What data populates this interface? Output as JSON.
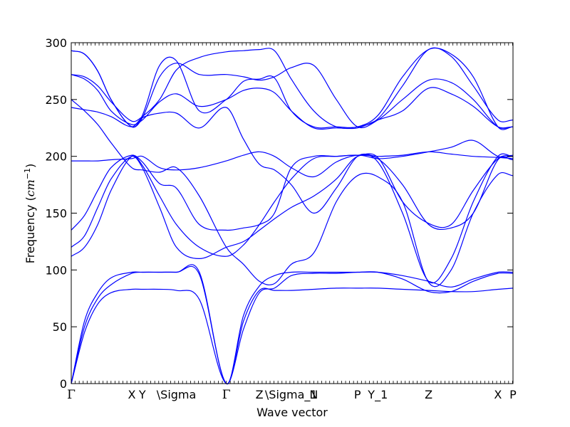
{
  "chart_data": {
    "type": "line",
    "title": "",
    "xlabel": "Wave vector",
    "ylabel": "Frequency (cm⁻¹)",
    "ylabel_prefix": "Frequency (",
    "ylabel_unit": "cm",
    "ylabel_exp": "−1",
    "ylabel_suffix": ")",
    "ylim": [
      0,
      300
    ],
    "xlim": [
      0,
      100
    ],
    "yticks": [
      0,
      50,
      100,
      150,
      200,
      250,
      300
    ],
    "grid": false,
    "legend": "none",
    "line_color": "#0000ff",
    "xticks": [
      {
        "label": "Γ",
        "x": 0
      },
      {
        "label": "X",
        "x": 13.7
      },
      {
        "label": "Y",
        "x": 16.1
      },
      {
        "label": "\\Sigma",
        "x": 23.8
      },
      {
        "label": "Γ",
        "x": 35.1
      },
      {
        "label": "Z",
        "x": 42.6
      },
      {
        "label": "\\Sigma_1",
        "x": 49.8
      },
      {
        "label": "N",
        "x": 54.9
      },
      {
        "label": "P",
        "x": 64.8
      },
      {
        "label": "Y_1",
        "x": 69.4
      },
      {
        "label": "Z",
        "x": 80.9
      },
      {
        "label": "X",
        "x": 96.6
      },
      {
        "label": "P",
        "x": 100
      }
    ],
    "x": [
      0,
      3,
      6,
      9,
      13.7,
      16.1,
      20,
      23.8,
      29,
      35.1,
      39,
      42.6,
      46,
      49.8,
      54.9,
      60,
      64.8,
      69.4,
      75,
      80.9,
      86,
      91,
      96.6,
      100
    ],
    "series": [
      {
        "values": [
          0,
          50,
          75,
          87,
          97,
          98,
          98,
          98,
          96,
          0,
          55,
          82,
          82,
          82,
          83,
          84,
          84,
          84,
          83,
          82,
          81,
          81,
          83,
          84
        ]
      },
      {
        "values": [
          0,
          45,
          70,
          80,
          83,
          83,
          83,
          82,
          74,
          0,
          48,
          80,
          84,
          95,
          97,
          97,
          98,
          98,
          92,
          81,
          81,
          90,
          97,
          97
        ]
      },
      {
        "values": [
          0,
          55,
          80,
          93,
          98,
          98,
          98,
          98,
          98,
          0,
          60,
          86,
          95,
          98,
          98,
          98,
          98,
          98,
          95,
          90,
          85,
          92,
          98,
          98
        ]
      },
      {
        "values": [
          112,
          120,
          140,
          170,
          200,
          192,
          165,
          140,
          120,
          112,
          122,
          140,
          160,
          180,
          198,
          200,
          201,
          199,
          160,
          141,
          140,
          170,
          198,
          201
        ]
      },
      {
        "values": [
          120,
          130,
          155,
          180,
          200,
          190,
          155,
          120,
          110,
          120,
          125,
          135,
          145,
          155,
          165,
          180,
          200,
          195,
          150,
          90,
          110,
          160,
          200,
          200
        ]
      },
      {
        "values": [
          135,
          148,
          170,
          190,
          201,
          195,
          176,
          172,
          140,
          135,
          137,
          140,
          150,
          190,
          200,
          200,
          201,
          198,
          175,
          140,
          137,
          150,
          197,
          197
        ]
      },
      {
        "values": [
          196,
          196,
          196,
          197,
          198,
          200,
          190,
          188,
          190,
          196,
          201,
          204,
          200,
          190,
          182,
          195,
          201,
          198,
          200,
          204,
          208,
          214,
          200,
          200
        ]
      },
      {
        "values": [
          250,
          240,
          228,
          212,
          190,
          188,
          186,
          190,
          165,
          120,
          105,
          90,
          88,
          105,
          115,
          160,
          183,
          182,
          160,
          89,
          100,
          150,
          184,
          183
        ]
      },
      {
        "values": [
          243,
          241,
          239,
          235,
          226,
          234,
          238,
          238,
          225,
          243,
          215,
          193,
          188,
          175,
          150,
          172,
          200,
          200,
          201,
          204,
          202,
          200,
          199,
          198
        ]
      },
      {
        "values": [
          272,
          268,
          258,
          240,
          228,
          232,
          248,
          255,
          244,
          250,
          258,
          260,
          256,
          240,
          225,
          225,
          225,
          232,
          240,
          260,
          255,
          244,
          226,
          226
        ]
      },
      {
        "values": [
          293,
          290,
          275,
          250,
          226,
          234,
          270,
          282,
          272,
          272,
          270,
          267,
          270,
          278,
          280,
          250,
          226,
          232,
          250,
          267,
          265,
          250,
          226,
          226
        ]
      },
      {
        "values": [
          272,
          270,
          262,
          248,
          231,
          235,
          250,
          276,
          287,
          292,
          293,
          294,
          293,
          268,
          240,
          226,
          226,
          233,
          262,
          294,
          288,
          262,
          232,
          232
        ]
      },
      {
        "values": [
          293,
          290,
          275,
          250,
          226,
          236,
          280,
          284,
          240,
          250,
          266,
          268,
          269,
          240,
          226,
          226,
          226,
          236,
          270,
          294,
          290,
          270,
          226,
          226
        ]
      }
    ]
  }
}
